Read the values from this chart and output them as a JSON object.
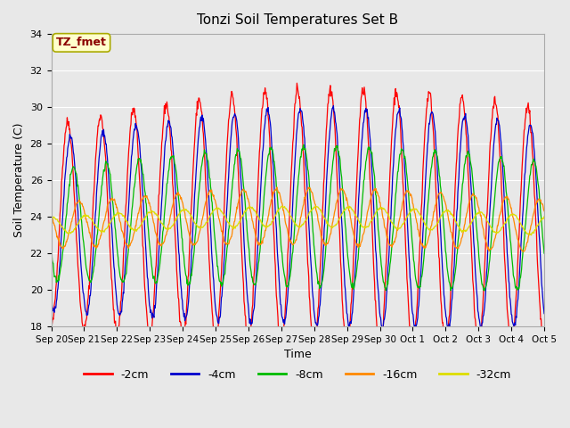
{
  "title": "Tonzi Soil Temperatures Set B",
  "xlabel": "Time",
  "ylabel": "Soil Temperature (C)",
  "ylim": [
    18,
    34
  ],
  "background_color": "#e8e8e8",
  "plot_bg_color": "#e8e8e8",
  "annotation_text": "TZ_fmet",
  "annotation_fg": "#8b0000",
  "annotation_bg": "#ffffcc",
  "annotation_border": "#aaaa00",
  "tick_labels": [
    "Sep 20",
    "Sep 21",
    "Sep 22",
    "Sep 23",
    "Sep 24",
    "Sep 25",
    "Sep 26",
    "Sep 27",
    "Sep 28",
    "Sep 29",
    "Sep 30",
    "Oct 1",
    "Oct 2",
    "Oct 3",
    "Oct 4",
    "Oct 5"
  ],
  "num_days": 15,
  "num_points": 960,
  "depths": [
    2,
    4,
    8,
    16,
    32
  ],
  "colors": [
    "#ff0000",
    "#0000cc",
    "#00bb00",
    "#ff8800",
    "#dddd00"
  ],
  "labels": [
    "-2cm",
    "-4cm",
    "-8cm",
    "-16cm",
    "-32cm"
  ],
  "amp_scales": [
    1.0,
    0.85,
    0.55,
    0.22,
    0.08
  ],
  "lag_scales": [
    0.0,
    0.08,
    0.18,
    0.35,
    0.55
  ],
  "noise_scales": [
    0.15,
    0.1,
    0.08,
    0.05,
    0.03
  ],
  "base_temp": 23.5
}
